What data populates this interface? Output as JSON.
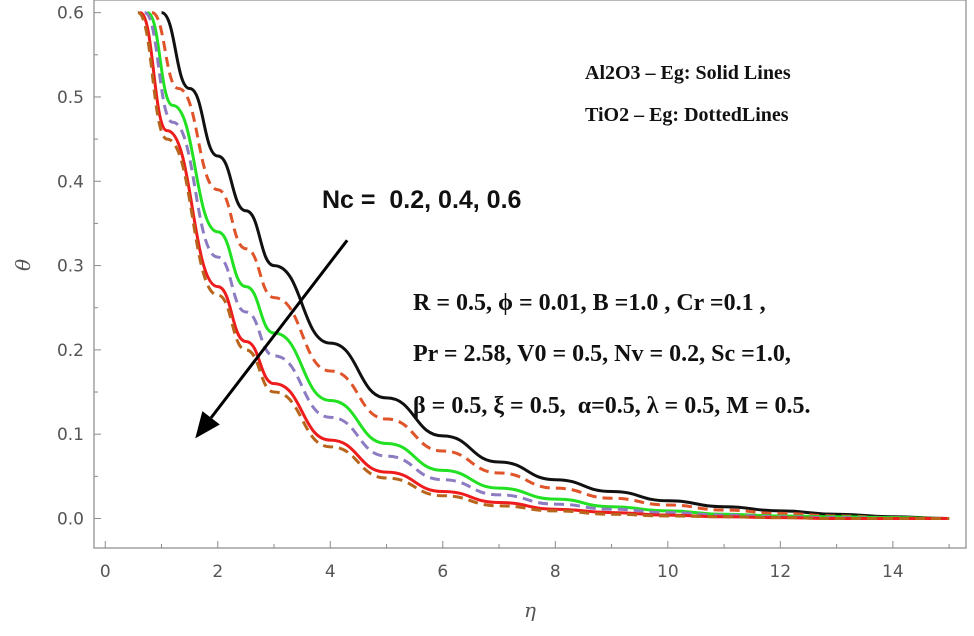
{
  "chart_data": {
    "type": "line",
    "xlabel": "η",
    "ylabel": "θ",
    "xlim": [
      -0.2,
      15.3
    ],
    "ylim": [
      -0.035,
      0.615
    ],
    "xticks": [
      0,
      2,
      4,
      6,
      8,
      10,
      12,
      14
    ],
    "yticks": [
      0.0,
      0.1,
      0.2,
      0.3,
      0.4,
      0.5,
      0.6
    ],
    "xtick_labels": [
      "0",
      "2",
      "4",
      "6",
      "8",
      "10",
      "12",
      "14"
    ],
    "ytick_labels": [
      "0.0",
      "0.1",
      "0.2",
      "0.3",
      "0.4",
      "0.5",
      "0.6"
    ],
    "grid": false,
    "legend_lines": [
      "Al2O3 – Eg: Solid Lines",
      "TiO2 – Eg: DottedLines"
    ],
    "annotation_nc": "Nc =  0.2, 0.4, 0.6",
    "annotation_params": [
      "R = 0.5, ϕ = 0.01, B =1.0 , Cr =0.1 ,",
      "Pr = 2.58, V0 = 0.5, Nv = 0.2, Sc =1.0,",
      "β = 0.5, ξ = 0.5,  α=0.5, λ = 0.5, M = 0.5."
    ],
    "series": [
      {
        "color": "#111111",
        "style": "solid",
        "x": [
          1.0,
          1.5,
          2,
          2.5,
          3,
          4,
          5,
          6,
          7,
          8,
          9,
          10,
          11,
          12,
          13,
          14,
          15
        ],
        "y": [
          0.6,
          0.51,
          0.43,
          0.365,
          0.3,
          0.208,
          0.143,
          0.098,
          0.067,
          0.046,
          0.032,
          0.021,
          0.014,
          0.009,
          0.005,
          0.002,
          0.0
        ]
      },
      {
        "color": "#e0542a",
        "style": "dashed",
        "x": [
          0.83,
          1.3,
          2,
          2.5,
          3,
          4,
          5,
          6,
          7,
          8,
          9,
          10,
          11,
          12,
          13,
          14,
          15
        ],
        "y": [
          0.6,
          0.51,
          0.39,
          0.32,
          0.262,
          0.175,
          0.118,
          0.08,
          0.054,
          0.036,
          0.024,
          0.016,
          0.01,
          0.006,
          0.003,
          0.001,
          0.0
        ]
      },
      {
        "color": "#22e022",
        "style": "solid",
        "x": [
          0.75,
          1.2,
          2,
          2.5,
          3,
          4,
          5,
          6,
          7,
          8,
          9,
          10,
          11,
          12,
          13,
          14,
          15
        ],
        "y": [
          0.6,
          0.49,
          0.34,
          0.275,
          0.22,
          0.14,
          0.089,
          0.057,
          0.036,
          0.023,
          0.014,
          0.009,
          0.005,
          0.003,
          0.002,
          0.001,
          0.0
        ]
      },
      {
        "color": "#8e7cc3",
        "style": "dashed",
        "x": [
          0.7,
          1.2,
          2,
          2.5,
          3,
          4,
          5,
          6,
          7,
          8,
          9,
          10,
          11,
          12,
          13,
          14,
          15
        ],
        "y": [
          0.6,
          0.47,
          0.31,
          0.245,
          0.193,
          0.12,
          0.074,
          0.046,
          0.028,
          0.017,
          0.011,
          0.007,
          0.004,
          0.002,
          0.001,
          0.0,
          0.0
        ]
      },
      {
        "color": "#ee1c1c",
        "style": "solid",
        "x": [
          0.62,
          1.1,
          2,
          2.5,
          3,
          4,
          5,
          6,
          7,
          8,
          9,
          10,
          11,
          12,
          13,
          14,
          15
        ],
        "y": [
          0.6,
          0.46,
          0.275,
          0.21,
          0.16,
          0.093,
          0.055,
          0.032,
          0.019,
          0.011,
          0.007,
          0.004,
          0.002,
          0.001,
          0.0,
          0.0,
          0.0
        ]
      },
      {
        "color": "#b8651b",
        "style": "dashed",
        "x": [
          0.58,
          1.1,
          2,
          2.5,
          3,
          4,
          5,
          6,
          7,
          8,
          9,
          10,
          11,
          12,
          13,
          14,
          15
        ],
        "y": [
          0.6,
          0.45,
          0.265,
          0.2,
          0.15,
          0.085,
          0.048,
          0.027,
          0.015,
          0.009,
          0.005,
          0.003,
          0.002,
          0.001,
          0.0,
          0.0,
          0.0
        ]
      }
    ],
    "arrow": {
      "from": [
        4.3,
        0.33
      ],
      "to": [
        1.6,
        0.095
      ]
    }
  }
}
